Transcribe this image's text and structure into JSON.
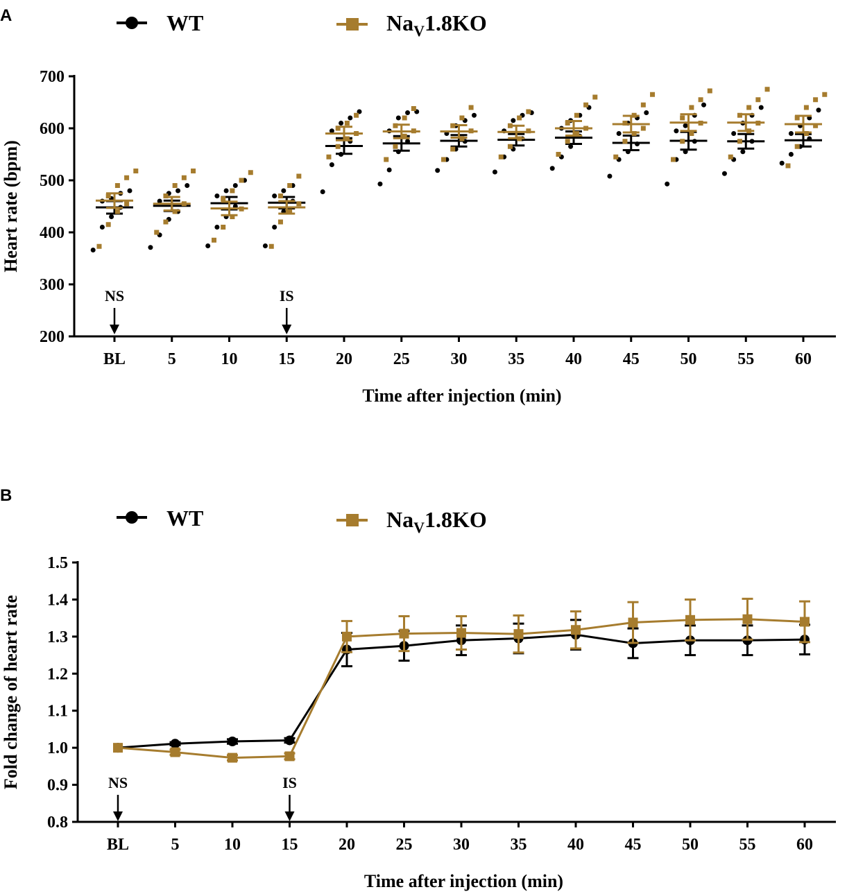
{
  "panels": {
    "a_letter": "A",
    "b_letter": "B"
  },
  "legend": {
    "wt_label": "WT",
    "ko_main": "Na",
    "ko_sub": "V",
    "ko_tail": "1.8KO"
  },
  "colors": {
    "wt": "#000000",
    "ko": "#a67c2e",
    "axis": "#000000"
  },
  "chart_data": [
    {
      "type": "scatter",
      "panel": "A",
      "ylabel": "Heart rate (bpm)",
      "xlabel": "Time after injection (min)",
      "categories": [
        "BL",
        "5",
        "10",
        "15",
        "20",
        "25",
        "30",
        "35",
        "40",
        "45",
        "50",
        "55",
        "60"
      ],
      "ylim": [
        200,
        700
      ],
      "yticks": [
        200,
        300,
        400,
        500,
        600,
        700
      ],
      "annotations": [
        {
          "label": "NS",
          "category": "BL"
        },
        {
          "label": "IS",
          "category": "15"
        }
      ],
      "series": [
        {
          "name": "WT",
          "marker": "circle",
          "mean": [
            448,
            451,
            456,
            457,
            566,
            571,
            576,
            578,
            582,
            572,
            576,
            575,
            577
          ],
          "sem": [
            12,
            10,
            12,
            11,
            15,
            14,
            11,
            11,
            12,
            14,
            17,
            14,
            12
          ],
          "points": [
            [
              366,
              410,
              430,
              448,
              460,
              465,
              475,
              480
            ],
            [
              371,
              395,
              425,
              440,
              460,
              475,
              480,
              490
            ],
            [
              374,
              410,
              430,
              450,
              470,
              480,
              490,
              500
            ],
            [
              374,
              410,
              440,
              460,
              470,
              480,
              490
            ],
            [
              478,
              530,
              550,
              575,
              595,
              610,
              620,
              632
            ],
            [
              493,
              520,
              555,
              575,
              595,
              620,
              630,
              632
            ],
            [
              519,
              540,
              560,
              575,
              590,
              605,
              615,
              625
            ],
            [
              516,
              545,
              560,
              580,
              595,
              615,
              625,
              630
            ],
            [
              523,
              545,
              565,
              585,
              600,
              615,
              625,
              640
            ],
            [
              508,
              540,
              555,
              570,
              590,
              610,
              620,
              630
            ],
            [
              493,
              540,
              555,
              575,
              595,
              605,
              625,
              645
            ],
            [
              513,
              540,
              555,
              575,
              590,
              610,
              625,
              640
            ],
            [
              533,
              550,
              565,
              580,
              590,
              605,
              620,
              635
            ]
          ]
        },
        {
          "name": "NaV1.8KO",
          "marker": "square",
          "mean": [
            461,
            455,
            446,
            448,
            590,
            594,
            594,
            593,
            600,
            608,
            611,
            611,
            608
          ],
          "sem": [
            14,
            13,
            13,
            12,
            13,
            13,
            12,
            12,
            14,
            16,
            16,
            16,
            16
          ],
          "points": [
            [
              373,
              415,
              440,
              455,
              470,
              490,
              505,
              518
            ],
            [
              400,
              420,
              440,
              455,
              470,
              490,
              505,
              518
            ],
            [
              385,
              410,
              430,
              445,
              465,
              480,
              500,
              515
            ],
            [
              373,
              420,
              440,
              455,
              470,
              490,
              508
            ],
            [
              545,
              565,
              580,
              590,
              600,
              610,
              625
            ],
            [
              540,
              565,
              585,
              595,
              605,
              620,
              638
            ],
            [
              540,
              560,
              580,
              595,
              605,
              620,
              640
            ],
            [
              545,
              565,
              580,
              595,
              605,
              620,
              632
            ],
            [
              550,
              575,
              590,
              600,
              610,
              625,
              645,
              660
            ],
            [
              545,
              575,
              590,
              600,
              610,
              625,
              645,
              665
            ],
            [
              540,
              575,
              590,
              610,
              620,
              640,
              655,
              672
            ],
            [
              545,
              575,
              595,
              610,
              625,
              640,
              655,
              675
            ],
            [
              528,
              565,
              590,
              605,
              620,
              640,
              655,
              665
            ]
          ]
        }
      ]
    },
    {
      "type": "line",
      "panel": "B",
      "ylabel": "Fold change of heart rate",
      "xlabel": "Time after injection (min)",
      "categories": [
        "BL",
        "5",
        "10",
        "15",
        "20",
        "25",
        "30",
        "35",
        "40",
        "45",
        "50",
        "55",
        "60"
      ],
      "ylim": [
        0.8,
        1.5
      ],
      "yticks": [
        "0.8",
        "0.9",
        "1.0",
        "1.1",
        "1.2",
        "1.3",
        "1.4",
        "1.5"
      ],
      "annotations": [
        {
          "label": "NS",
          "category": "BL"
        },
        {
          "label": "IS",
          "category": "15"
        }
      ],
      "series": [
        {
          "name": "WT",
          "marker": "circle",
          "values": [
            1.0,
            1.011,
            1.017,
            1.02,
            1.265,
            1.275,
            1.29,
            1.295,
            1.305,
            1.282,
            1.29,
            1.29,
            1.292
          ],
          "err": [
            0.0,
            0.004,
            0.006,
            0.006,
            0.045,
            0.04,
            0.04,
            0.04,
            0.04,
            0.04,
            0.04,
            0.04,
            0.04
          ]
        },
        {
          "name": "NaV1.8KO",
          "marker": "square",
          "values": [
            1.0,
            0.988,
            0.973,
            0.977,
            1.3,
            1.308,
            1.31,
            1.307,
            1.318,
            1.338,
            1.345,
            1.347,
            1.34
          ],
          "err": [
            0.0,
            0.007,
            0.007,
            0.008,
            0.042,
            0.047,
            0.045,
            0.05,
            0.05,
            0.055,
            0.055,
            0.055,
            0.055
          ]
        }
      ]
    }
  ]
}
